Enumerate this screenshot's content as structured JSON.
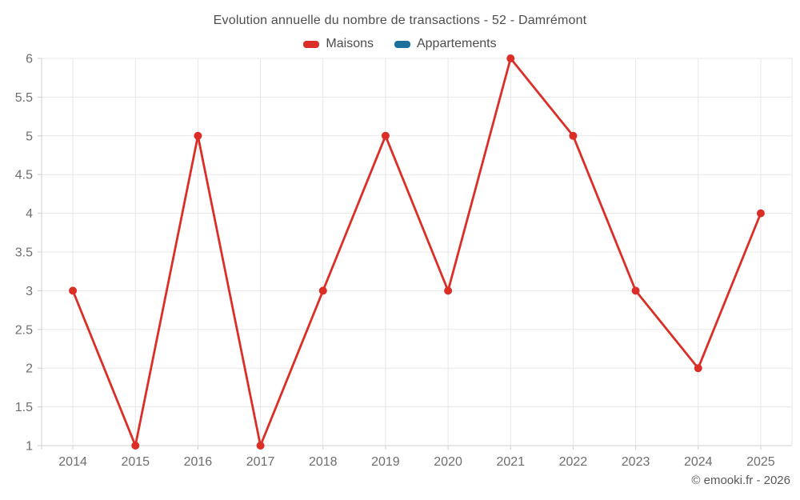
{
  "page": {
    "footer": "© emooki.fr - 2026"
  },
  "chart_data": {
    "type": "line",
    "title": "Evolution annuelle du nombre de transactions - 52 - Damrémont",
    "categories": [
      "2014",
      "2015",
      "2016",
      "2017",
      "2018",
      "2019",
      "2020",
      "2021",
      "2022",
      "2023",
      "2024",
      "2025"
    ],
    "series": [
      {
        "name": "Maisons",
        "color": "#db2e27",
        "values": [
          3,
          1,
          5,
          1,
          3,
          5,
          3,
          6,
          5,
          3,
          2,
          4
        ]
      },
      {
        "name": "Appartements",
        "color": "#1d6f9c",
        "values": []
      }
    ],
    "xlabel": "",
    "ylabel": "",
    "ylim": [
      1,
      6
    ],
    "ytick_step": 0.5,
    "grid": true,
    "legend_position": "top",
    "colors": {
      "grid_line": "#e7e7e7",
      "axis_line": "#cfcfcf",
      "tick_label": "#6e6e6e",
      "title_text": "#4d4d4d"
    }
  }
}
